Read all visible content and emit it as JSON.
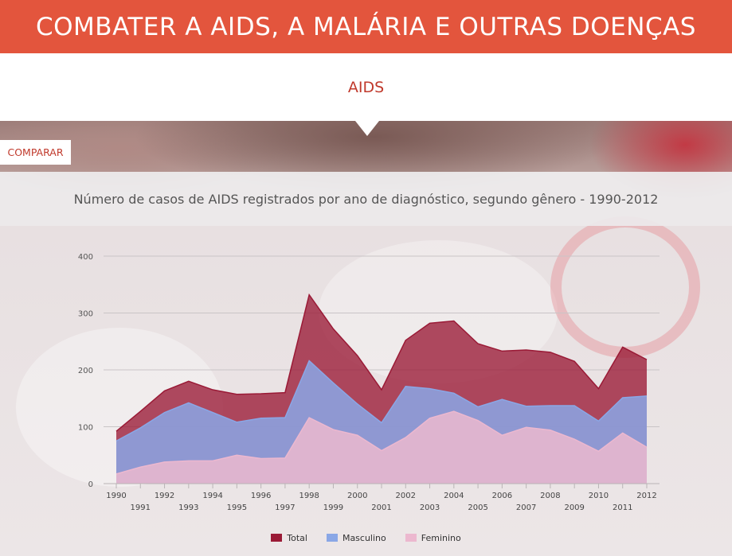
{
  "header": {
    "title": "COMBATER A AIDS, A MALÁRIA E OUTRAS DOENÇAS"
  },
  "subnav": {
    "active_tab": "AIDS"
  },
  "compare_button": {
    "label": "COMPARAR"
  },
  "colors": {
    "header_bg": "#e3553d",
    "accent_text": "#c0392b",
    "total": "#9a1a36",
    "masculino": "#8aa7e6",
    "feminino": "#ecb8cf"
  },
  "chart_data": {
    "type": "area",
    "title": "Número de casos de AIDS registrados por ano de diagnóstico, segundo gênero - 1990-2012",
    "xlabel": "",
    "ylabel": "",
    "ylim": [
      0,
      400
    ],
    "yticks": [
      0,
      100,
      200,
      300,
      400
    ],
    "grid": true,
    "legend_position": "bottom",
    "x": [
      "1990",
      "1991",
      "1992",
      "1993",
      "1994",
      "1995",
      "1996",
      "1997",
      "1998",
      "1999",
      "2000",
      "2001",
      "2002",
      "2003",
      "2004",
      "2005",
      "2006",
      "2007",
      "2008",
      "2009",
      "2010",
      "2011",
      "2012"
    ],
    "series": [
      {
        "name": "Total",
        "color": "#9a1a36",
        "values": [
          92,
          127,
          163,
          180,
          165,
          157,
          158,
          160,
          332,
          272,
          225,
          165,
          252,
          282,
          286,
          246,
          233,
          235,
          231,
          215,
          167,
          240,
          218
        ]
      },
      {
        "name": "Masculino",
        "color": "#8aa7e6",
        "values": [
          75,
          98,
          125,
          142,
          125,
          108,
          115,
          116,
          216,
          177,
          140,
          107,
          171,
          167,
          159,
          135,
          148,
          136,
          137,
          137,
          110,
          151,
          154
        ]
      },
      {
        "name": "Feminino",
        "color": "#ecb8cf",
        "values": [
          17,
          29,
          38,
          40,
          40,
          50,
          44,
          45,
          116,
          95,
          85,
          58,
          81,
          115,
          127,
          111,
          85,
          99,
          94,
          78,
          57,
          89,
          64
        ]
      }
    ]
  }
}
